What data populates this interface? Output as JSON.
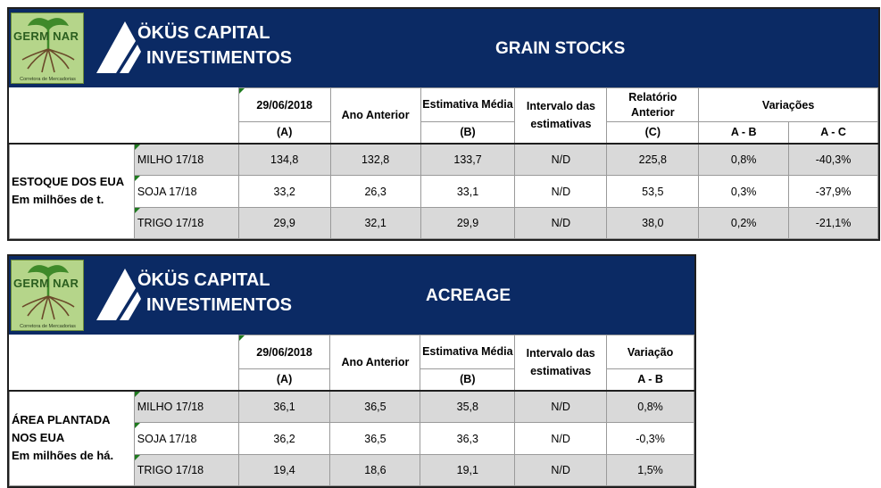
{
  "brand": {
    "line1": "ÖKÜS CAPITAL",
    "line2": "INVESTIMENTOS",
    "logo_text": "GERM NAR",
    "logo_sub": "Corretora de Mercadorias"
  },
  "colors": {
    "header_bg": "#0b2a64",
    "row_grey": "#d9d9d9",
    "marker_green": "#1e7a1e"
  },
  "grain": {
    "title": "GRAIN STOCKS",
    "headers": {
      "date": "29/06/2018",
      "prev": "Ano Anterior",
      "est": "Estimativa Média",
      "range": "Intervalo das estimativas",
      "report": "Relatório Anterior",
      "variations": "Variações"
    },
    "sub": {
      "a": "(A)",
      "b": "(B)",
      "c": "(C)",
      "ab": "A - B",
      "ac": "A - C"
    },
    "row_label_1": "ESTOQUE DOS EUA",
    "row_label_2": "Em milhões de t.",
    "rows": [
      {
        "product": "MILHO 17/18",
        "a": "134,8",
        "prev": "132,8",
        "b": "133,7",
        "range": "N/D",
        "c": "225,8",
        "ab": "0,8%",
        "ac": "-40,3%"
      },
      {
        "product": "SOJA 17/18",
        "a": "33,2",
        "prev": "26,3",
        "b": "33,1",
        "range": "N/D",
        "c": "53,5",
        "ab": "0,3%",
        "ac": "-37,9%"
      },
      {
        "product": "TRIGO 17/18",
        "a": "29,9",
        "prev": "32,1",
        "b": "29,9",
        "range": "N/D",
        "c": "38,0",
        "ab": "0,2%",
        "ac": "-21,1%"
      }
    ]
  },
  "acreage": {
    "title": "ACREAGE",
    "headers": {
      "date": "29/06/2018",
      "prev": "Ano Anterior",
      "est": "Estimativa Média",
      "range": "Intervalo das estimativas",
      "variation": "Variação"
    },
    "sub": {
      "a": "(A)",
      "b": "(B)",
      "ab": "A - B"
    },
    "row_label_1": "ÁREA PLANTADA",
    "row_label_2": "NOS EUA",
    "row_label_3": "Em milhões de há.",
    "rows": [
      {
        "product": "MILHO 17/18",
        "a": "36,1",
        "prev": "36,5",
        "b": "35,8",
        "range": "N/D",
        "ab": "0,8%"
      },
      {
        "product": "SOJA 17/18",
        "a": "36,2",
        "prev": "36,5",
        "b": "36,3",
        "range": "N/D",
        "ab": "-0,3%"
      },
      {
        "product": "TRIGO 17/18",
        "a": "19,4",
        "prev": "18,6",
        "b": "19,1",
        "range": "N/D",
        "ab": "1,5%"
      }
    ]
  }
}
